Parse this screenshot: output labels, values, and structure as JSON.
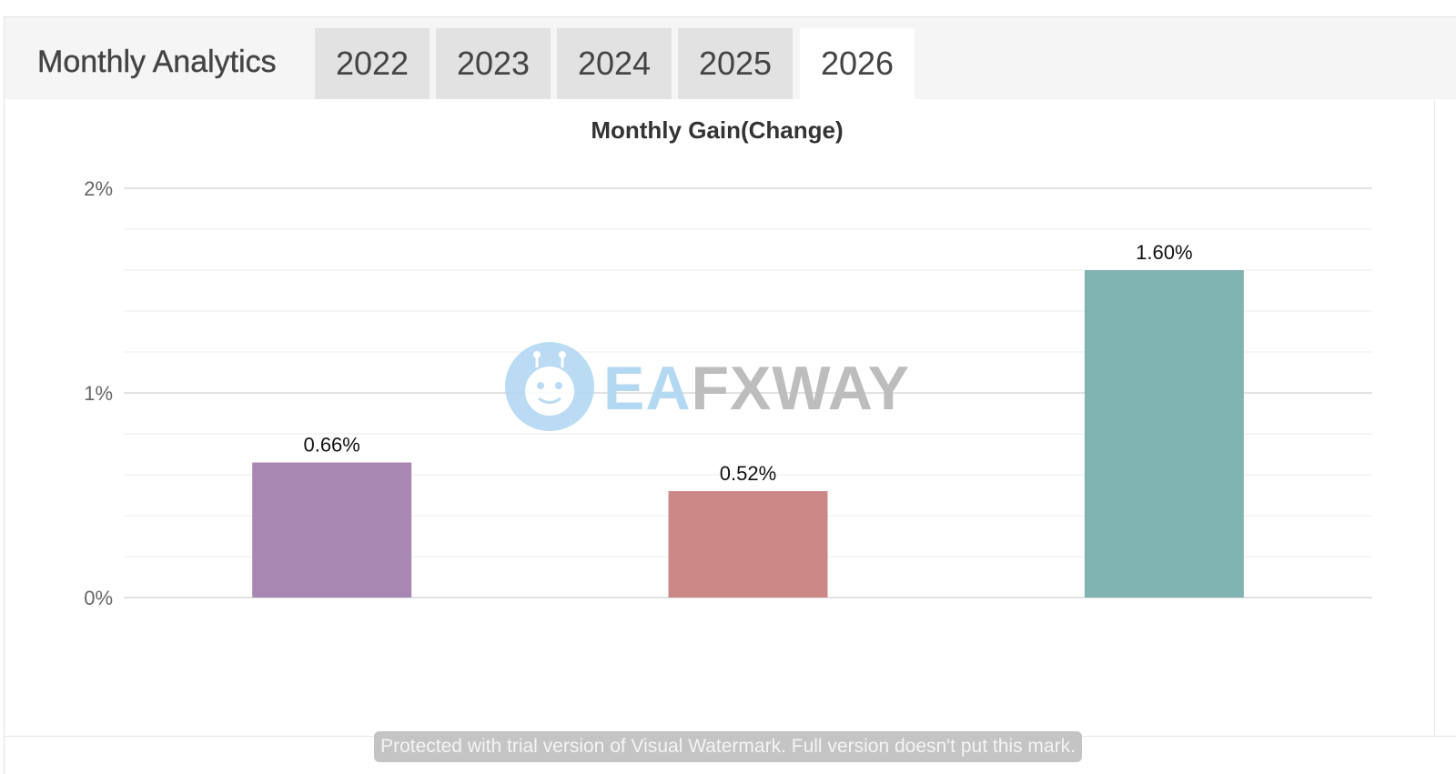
{
  "header": {
    "title": "Monthly Analytics",
    "tabs": [
      {
        "label": "2022",
        "active": false
      },
      {
        "label": "2023",
        "active": false
      },
      {
        "label": "2024",
        "active": false
      },
      {
        "label": "2025",
        "active": false
      },
      {
        "label": "2026",
        "active": true
      }
    ]
  },
  "watermark": {
    "brand_part1": "EA",
    "brand_part2": "FXWAY",
    "brand_color1": "#b3d8f2",
    "brand_color2": "#bdbdbd",
    "notice": "Protected with trial version of Visual Watermark. Full version doesn't put this mark."
  },
  "chart_data": {
    "type": "bar",
    "title": "Monthly Gain(Change)",
    "categories": [
      "",
      "",
      ""
    ],
    "values": [
      0.66,
      0.52,
      1.6
    ],
    "data_labels": [
      "0.66%",
      "0.52%",
      "1.60%"
    ],
    "colors": [
      "#a987b3",
      "#cc8886",
      "#7fb4b2"
    ],
    "ylim": [
      0,
      2
    ],
    "yticks": [
      0,
      1,
      2
    ],
    "ytick_labels": [
      "0%",
      "1%",
      "2%"
    ],
    "grid": true,
    "legend": "none"
  }
}
